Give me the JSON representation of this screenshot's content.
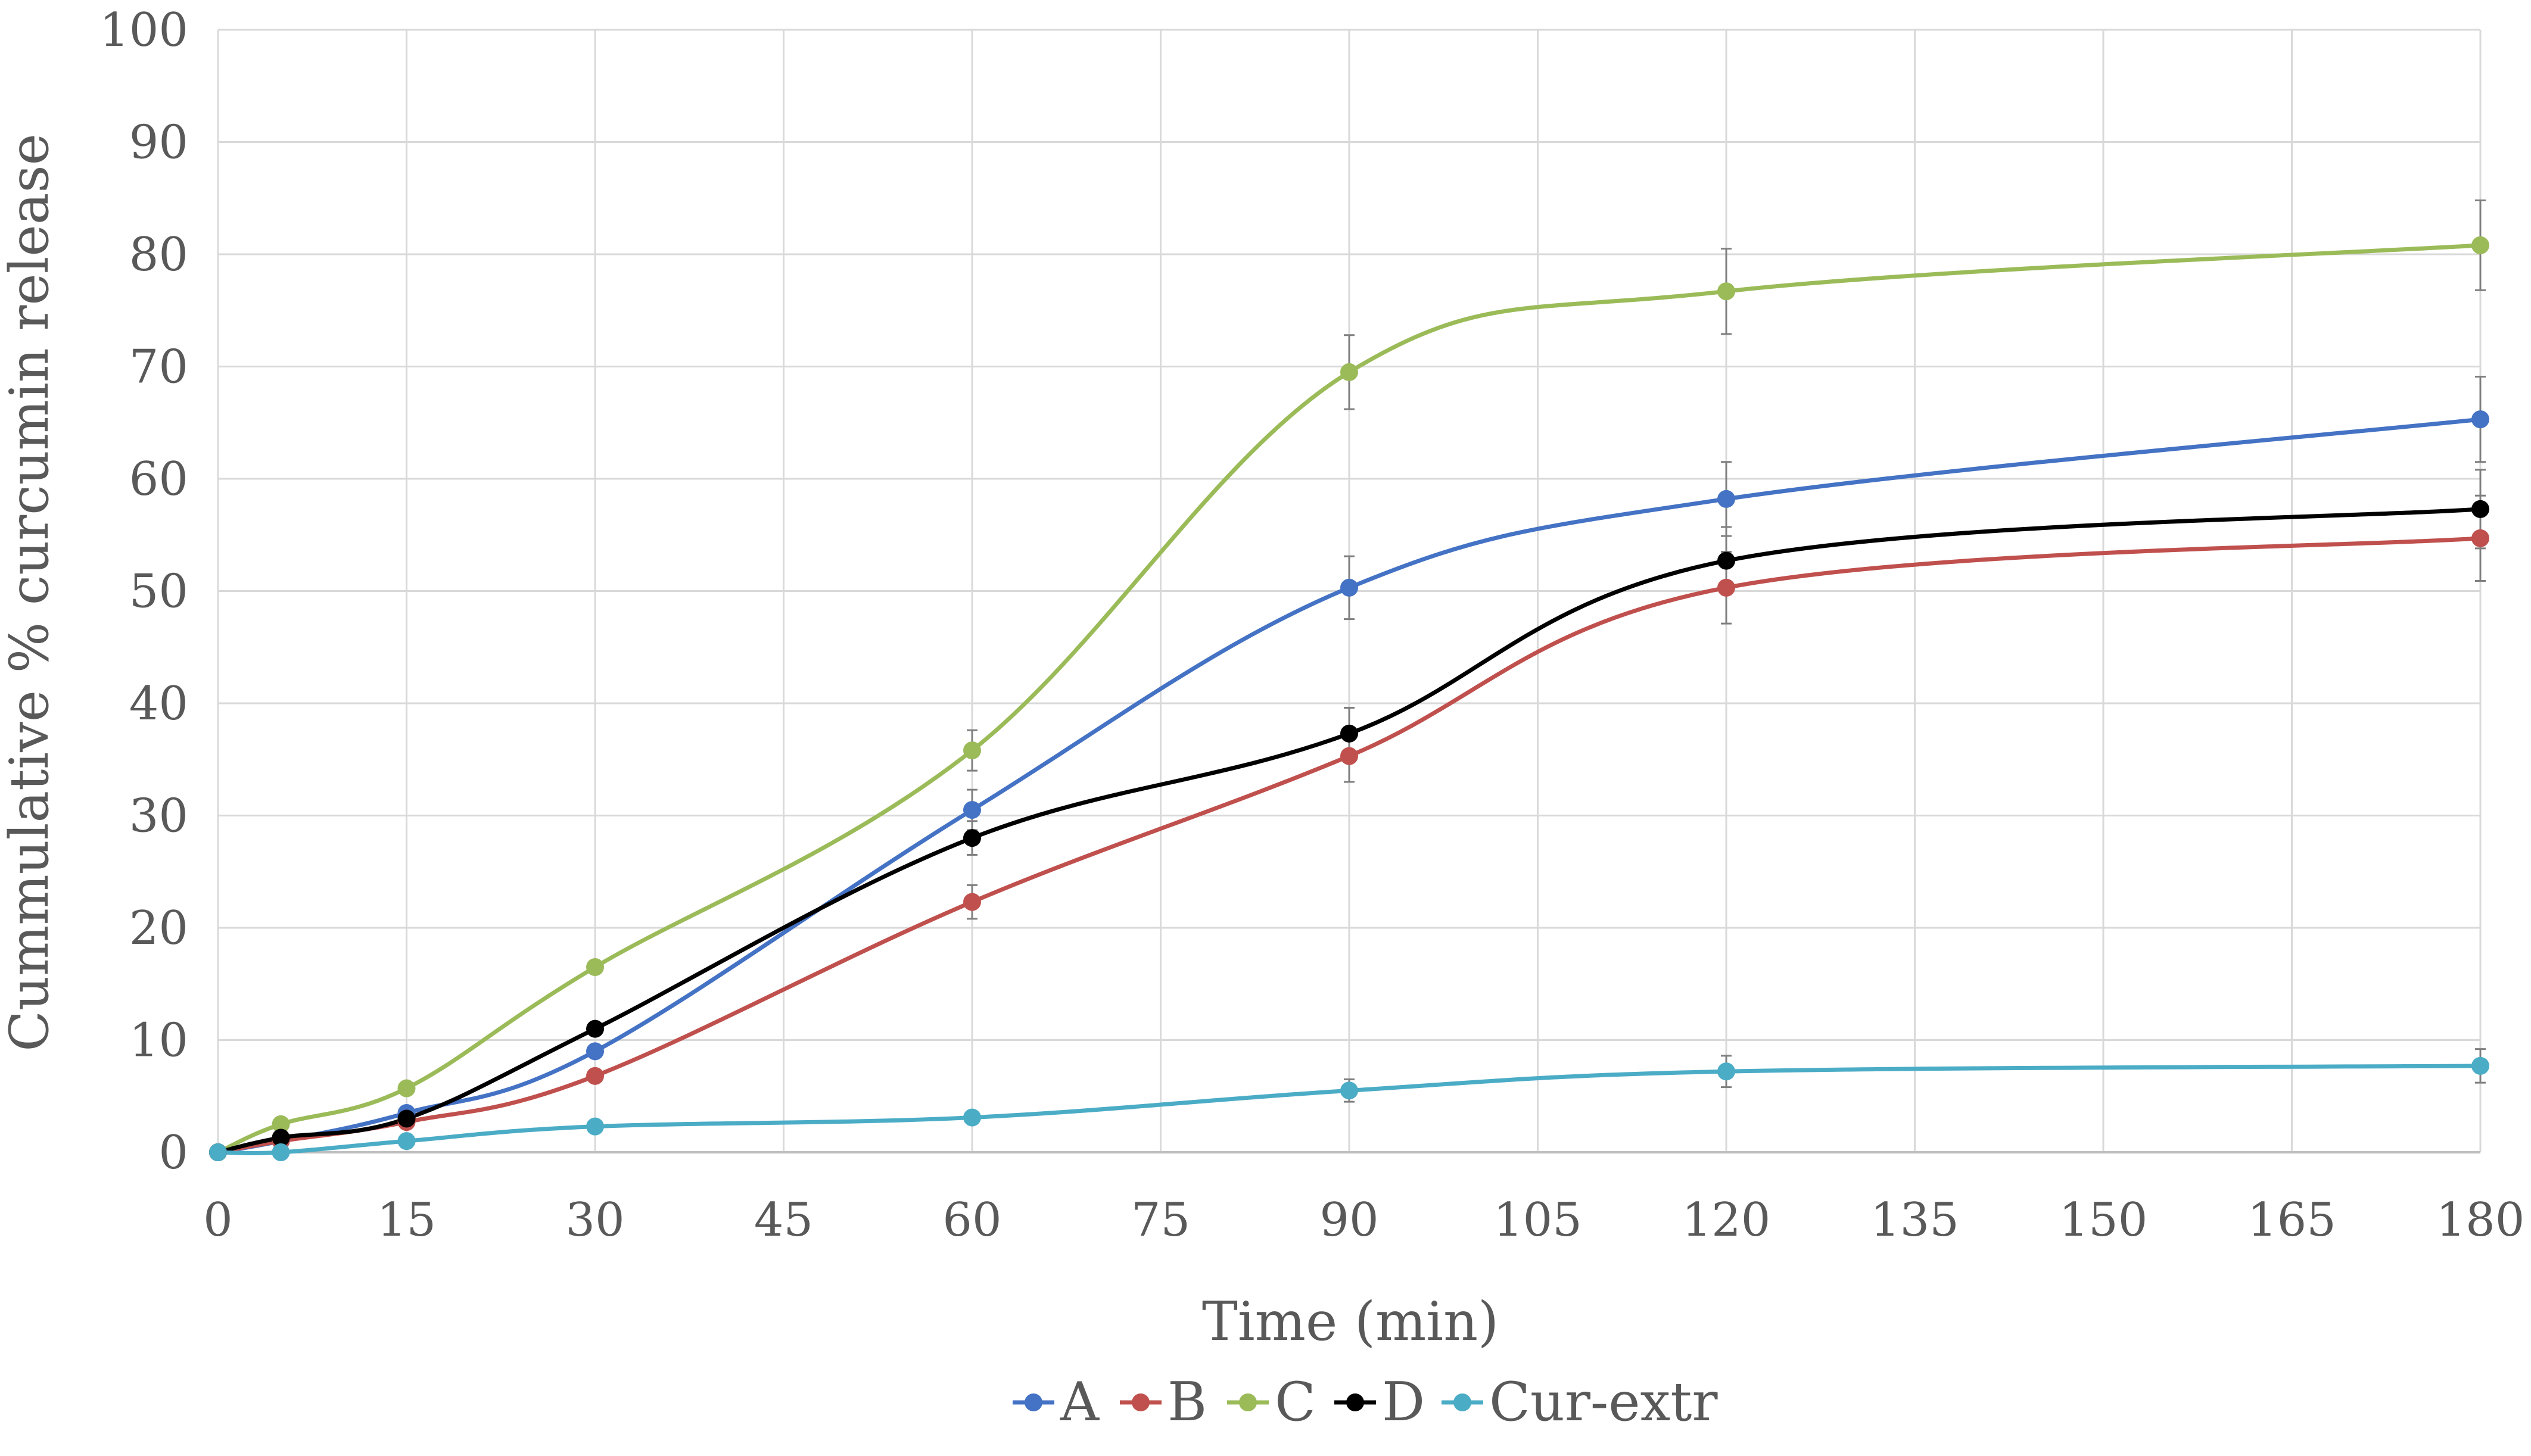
{
  "chart_data": {
    "type": "line",
    "title": "",
    "xlabel": "Time (min)",
    "ylabel": "Cummulative % curcumin release",
    "xlim": [
      0,
      180
    ],
    "ylim": [
      0,
      100
    ],
    "x_ticks": [
      "0",
      "15",
      "30",
      "45",
      "60",
      "75",
      "90",
      "105",
      "120",
      "135",
      "150",
      "165",
      "180"
    ],
    "y_ticks": [
      "0",
      "10",
      "20",
      "30",
      "40",
      "50",
      "60",
      "70",
      "80",
      "90",
      "100"
    ],
    "grid": true,
    "legend_position": "bottom",
    "error_bars": true,
    "series": [
      {
        "name": "A",
        "color": "#4472C4",
        "x": [
          0,
          5,
          15,
          30,
          60,
          90,
          120,
          180
        ],
        "y": [
          0,
          1.0,
          3.5,
          9.0,
          30.5,
          50.3,
          58.2,
          65.3
        ],
        "err": [
          0,
          0,
          0,
          0,
          1.8,
          2.8,
          3.3,
          3.8
        ]
      },
      {
        "name": "B",
        "color": "#C0504D",
        "x": [
          0,
          5,
          15,
          30,
          60,
          90,
          120,
          180
        ],
        "y": [
          0,
          1.0,
          2.7,
          6.8,
          22.3,
          35.3,
          50.3,
          54.7
        ],
        "err": [
          0,
          0,
          0,
          0,
          1.5,
          2.3,
          3.2,
          3.8
        ]
      },
      {
        "name": "C",
        "color": "#9BBB59",
        "x": [
          0,
          5,
          15,
          30,
          60,
          90,
          120,
          180
        ],
        "y": [
          0,
          2.5,
          5.7,
          16.5,
          35.8,
          69.5,
          76.7,
          80.8
        ],
        "err": [
          0,
          0,
          0,
          0,
          1.8,
          3.3,
          3.8,
          4.0
        ]
      },
      {
        "name": "D",
        "color": "#000000",
        "x": [
          0,
          5,
          15,
          30,
          60,
          90,
          120,
          180
        ],
        "y": [
          0,
          1.3,
          3.0,
          11.0,
          28.0,
          37.3,
          52.7,
          57.3
        ],
        "err": [
          0,
          0,
          0,
          0,
          1.5,
          2.3,
          3.0,
          3.5
        ]
      },
      {
        "name": "Cur-extr",
        "color": "#4BACC6",
        "x": [
          0,
          5,
          15,
          30,
          60,
          90,
          120,
          180
        ],
        "y": [
          0,
          0,
          1.0,
          2.3,
          3.1,
          5.5,
          7.2,
          7.7
        ],
        "err": [
          0,
          0,
          0,
          0,
          0,
          1.0,
          1.4,
          1.5
        ]
      }
    ]
  }
}
